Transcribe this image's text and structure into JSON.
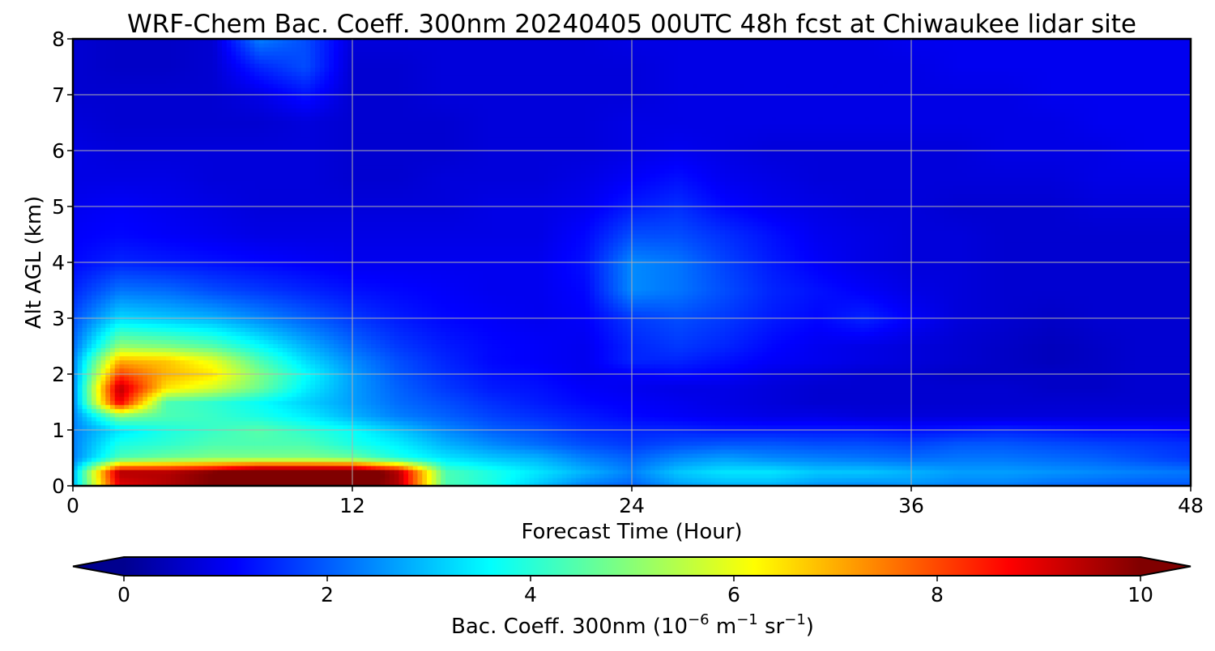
{
  "chart_data": {
    "type": "heatmap",
    "title": "WRF-Chem Bac. Coeff. 300nm  20240405 00UTC 48h fcst at Chiwaukee lidar site",
    "xlabel": "Forecast Time (Hour)",
    "ylabel": "Alt AGL (km)",
    "xlim": [
      0,
      48
    ],
    "ylim": [
      0,
      8
    ],
    "xticks": [
      0,
      12,
      24,
      36,
      48
    ],
    "yticks": [
      0,
      1,
      2,
      3,
      4,
      5,
      6,
      7,
      8
    ],
    "grid": true,
    "colormap": "jet",
    "colorbar": {
      "label_main": "Bac. Coeff. 300nm  (10",
      "label_exp1": "−6",
      "label_mid": " m",
      "label_exp2": "−1",
      "label_mid2": " sr",
      "label_exp3": "−1",
      "label_end": ")",
      "range": [
        0,
        10
      ],
      "ticks": [
        0,
        2,
        4,
        6,
        8,
        10
      ],
      "extend": "both",
      "position": "bottom"
    },
    "z_units": "10^-6 m^-1 sr^-1",
    "grid_x_hours": [
      0,
      2,
      4,
      6,
      8,
      10,
      12,
      14,
      16,
      18,
      20,
      22,
      24,
      26,
      28,
      30,
      32,
      34,
      36,
      38,
      40,
      42,
      44,
      46,
      48
    ],
    "grid_y_km": [
      0.0,
      0.25,
      0.5,
      0.75,
      1.0,
      1.25,
      1.5,
      1.75,
      2.0,
      2.25,
      2.5,
      3.0,
      3.5,
      4.0,
      4.5,
      5.0,
      5.5,
      6.0,
      6.5,
      7.0,
      7.5,
      8.0
    ],
    "values": [
      [
        3.0,
        9.0,
        9.5,
        10.0,
        10.5,
        10.5,
        10.5,
        9.5,
        4.5,
        4.0,
        3.2,
        2.5,
        2.2,
        2.8,
        3.0,
        3.0,
        2.7,
        2.6,
        2.7,
        2.5,
        2.5,
        2.3,
        2.2,
        2.1,
        2.1
      ],
      [
        3.0,
        9.5,
        9.5,
        10.0,
        11.0,
        11.0,
        11.0,
        9.5,
        4.5,
        4.0,
        3.5,
        3.0,
        2.5,
        3.2,
        3.5,
        3.5,
        3.2,
        3.2,
        3.0,
        2.8,
        2.8,
        2.7,
        2.6,
        2.5,
        2.4
      ],
      [
        2.5,
        4.5,
        4.8,
        5.0,
        5.0,
        5.0,
        4.8,
        4.0,
        3.5,
        3.2,
        3.0,
        2.5,
        2.2,
        2.6,
        2.8,
        2.6,
        2.5,
        2.4,
        2.3,
        2.4,
        2.4,
        2.3,
        2.2,
        2.0,
        1.8
      ],
      [
        2.5,
        4.0,
        4.2,
        4.5,
        4.5,
        4.5,
        4.0,
        3.6,
        3.0,
        2.6,
        2.3,
        2.0,
        1.8,
        2.0,
        2.1,
        2.1,
        2.0,
        2.0,
        1.9,
        2.1,
        2.1,
        2.0,
        1.9,
        1.8,
        1.7
      ],
      [
        2.5,
        3.5,
        4.0,
        4.3,
        4.6,
        4.2,
        3.8,
        3.2,
        2.6,
        2.2,
        2.0,
        1.7,
        1.6,
        1.6,
        1.5,
        1.5,
        1.5,
        1.5,
        1.4,
        1.5,
        1.6,
        1.5,
        1.4,
        1.4,
        1.3
      ],
      [
        2.5,
        5.0,
        4.5,
        4.3,
        4.0,
        3.6,
        3.0,
        2.5,
        2.2,
        1.9,
        1.7,
        1.5,
        1.3,
        1.2,
        1.1,
        1.0,
        1.0,
        0.9,
        0.9,
        0.9,
        0.9,
        0.9,
        0.9,
        0.9,
        0.9
      ],
      [
        2.5,
        9.0,
        4.5,
        4.2,
        3.8,
        3.3,
        2.8,
        2.3,
        2.0,
        1.7,
        1.5,
        1.3,
        1.2,
        1.1,
        1.0,
        0.9,
        0.8,
        0.8,
        0.8,
        0.8,
        0.8,
        0.8,
        0.8,
        0.8,
        0.8
      ],
      [
        2.5,
        9.5,
        6.5,
        5.8,
        4.8,
        3.6,
        2.8,
        2.2,
        1.8,
        1.5,
        1.4,
        1.2,
        1.1,
        1.0,
        1.0,
        0.9,
        0.8,
        0.8,
        0.8,
        0.8,
        0.8,
        0.7,
        0.7,
        0.8,
        0.8
      ],
      [
        2.5,
        8.2,
        7.0,
        6.5,
        5.0,
        3.8,
        2.8,
        2.1,
        1.7,
        1.4,
        1.3,
        1.1,
        1.2,
        1.3,
        1.2,
        1.0,
        0.9,
        0.8,
        0.8,
        0.7,
        0.7,
        0.7,
        0.7,
        0.8,
        0.8
      ],
      [
        2.5,
        7.0,
        6.8,
        6.0,
        4.5,
        3.4,
        2.6,
        2.0,
        1.6,
        1.3,
        1.2,
        1.1,
        1.6,
        1.6,
        1.4,
        1.2,
        1.1,
        1.0,
        0.9,
        0.8,
        0.7,
        0.6,
        0.7,
        0.8,
        0.8
      ],
      [
        2.3,
        5.2,
        5.0,
        4.6,
        3.8,
        3.0,
        2.3,
        1.8,
        1.5,
        1.3,
        1.2,
        1.1,
        1.6,
        1.8,
        1.6,
        1.3,
        1.1,
        1.0,
        0.9,
        0.8,
        0.7,
        0.6,
        0.7,
        0.8,
        0.8
      ],
      [
        2.0,
        3.4,
        3.2,
        3.0,
        2.6,
        2.2,
        1.8,
        1.5,
        1.3,
        1.2,
        1.1,
        1.2,
        1.8,
        2.0,
        1.8,
        1.5,
        1.3,
        1.6,
        1.2,
        0.9,
        0.8,
        0.7,
        0.8,
        0.8,
        0.8
      ],
      [
        1.6,
        2.4,
        2.3,
        2.0,
        1.8,
        1.6,
        1.4,
        1.3,
        1.2,
        1.1,
        1.1,
        1.3,
        2.6,
        2.4,
        2.0,
        1.6,
        1.4,
        1.2,
        1.0,
        0.9,
        0.8,
        0.8,
        0.8,
        0.8,
        0.8
      ],
      [
        1.3,
        1.6,
        1.5,
        1.4,
        1.3,
        1.2,
        1.1,
        1.1,
        1.1,
        1.1,
        1.1,
        1.4,
        2.6,
        2.4,
        1.9,
        1.5,
        1.2,
        1.0,
        0.9,
        0.9,
        0.8,
        0.8,
        0.8,
        0.8,
        0.8
      ],
      [
        1.2,
        1.3,
        1.2,
        1.1,
        1.0,
        1.0,
        1.0,
        1.0,
        1.0,
        1.0,
        1.0,
        1.3,
        2.0,
        2.0,
        1.7,
        1.4,
        1.1,
        1.0,
        0.9,
        0.9,
        0.8,
        0.8,
        0.8,
        0.8,
        0.8
      ],
      [
        1.1,
        1.2,
        1.1,
        1.0,
        0.9,
        0.9,
        0.9,
        0.9,
        0.9,
        1.0,
        1.0,
        1.1,
        1.5,
        1.7,
        1.3,
        1.1,
        1.0,
        0.9,
        0.9,
        0.8,
        0.8,
        0.8,
        0.9,
        0.9,
        0.9
      ],
      [
        1.0,
        1.0,
        1.0,
        0.9,
        0.9,
        0.9,
        0.8,
        0.8,
        0.9,
        0.9,
        0.9,
        1.0,
        1.2,
        1.4,
        1.1,
        1.0,
        0.9,
        0.9,
        0.9,
        0.9,
        0.9,
        0.9,
        1.0,
        1.0,
        1.0
      ],
      [
        1.0,
        0.9,
        0.9,
        0.9,
        0.9,
        0.9,
        0.8,
        0.8,
        0.8,
        0.9,
        0.9,
        0.9,
        1.0,
        1.1,
        1.0,
        0.9,
        0.9,
        0.9,
        0.9,
        0.9,
        1.0,
        1.0,
        1.0,
        1.1,
        1.1
      ],
      [
        0.9,
        0.8,
        0.8,
        0.8,
        0.8,
        0.9,
        0.8,
        0.8,
        0.8,
        0.9,
        0.9,
        0.9,
        1.0,
        1.0,
        1.0,
        1.0,
        1.0,
        1.0,
        1.0,
        1.0,
        1.0,
        1.0,
        1.1,
        1.1,
        1.1
      ],
      [
        0.8,
        0.8,
        0.8,
        0.8,
        1.0,
        1.4,
        0.8,
        0.8,
        0.9,
        0.9,
        0.9,
        0.9,
        0.9,
        1.0,
        1.0,
        1.0,
        1.0,
        1.0,
        1.0,
        1.0,
        1.0,
        1.1,
        1.1,
        1.1,
        1.1
      ],
      [
        0.8,
        0.7,
        0.7,
        0.8,
        1.6,
        2.0,
        0.8,
        0.8,
        0.9,
        0.9,
        0.9,
        0.9,
        0.9,
        1.0,
        1.0,
        1.0,
        1.0,
        1.0,
        1.0,
        1.1,
        1.1,
        1.1,
        1.1,
        1.1,
        1.1
      ],
      [
        0.8,
        0.7,
        0.7,
        0.8,
        2.5,
        2.0,
        0.9,
        0.9,
        0.9,
        0.9,
        0.9,
        0.9,
        1.0,
        1.0,
        1.0,
        1.0,
        1.0,
        1.0,
        1.1,
        1.1,
        1.1,
        1.1,
        1.1,
        1.1,
        1.1
      ]
    ]
  }
}
